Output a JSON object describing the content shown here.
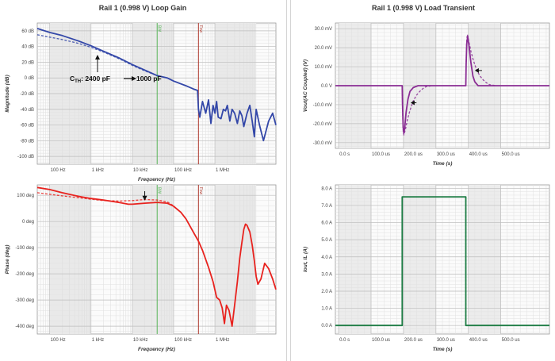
{
  "left_title": "Rail 1 (0.998 V) Loop Gain",
  "right_title": "Rail 1 (0.998 V) Load Transient",
  "colors": {
    "blue": "#3347a8",
    "red": "#e8221e",
    "purple": "#8a2d94",
    "green": "#1e7d45",
    "marker_green": "#5ab55a",
    "marker_red": "#b03a2e"
  },
  "chart_data": [
    {
      "type": "line",
      "name": "loop-gain-magnitude",
      "xlabel": "Frequency (Hz)",
      "ylabel": "Magnitude (dB)",
      "xscale": "log",
      "xlim": [
        50,
        30000000
      ],
      "ylim": [
        -110,
        70
      ],
      "xticks": [
        100,
        1000,
        10000,
        100000,
        1000000
      ],
      "xtick_labels": [
        "100 Hz",
        "1 kHz",
        "10 kHz",
        "100 kHz",
        "1 MHz"
      ],
      "yticks": [
        60,
        40,
        20,
        0,
        -20,
        -40,
        -60,
        -80,
        -100
      ],
      "ytick_labels": [
        "60 dB",
        "40 dB",
        "20 dB",
        "0 dB",
        "-20 dB",
        "-40 dB",
        "-60 dB",
        "-80 dB",
        "-100 dB"
      ],
      "markers": [
        {
          "label": "BW",
          "x": 40000
        },
        {
          "label": "Fsw",
          "x": 400000
        }
      ],
      "annotation": {
        "text_prefix": "C",
        "text_sub": "TH",
        "text_rest": ": 2400 pF",
        "arrow_to": "1000 pF"
      },
      "series": [
        {
          "style": "solid",
          "x": [
            50,
            100,
            200,
            500,
            1000,
            2000,
            5000,
            10000,
            20000,
            40000,
            70000,
            100000,
            200000,
            300000,
            380000,
            400000,
            430000,
            500000,
            600000,
            700000,
            800000,
            900000,
            1000000,
            1100000,
            1200000,
            1400000,
            1600000,
            1800000,
            2000000,
            2300000,
            2600000,
            3000000,
            3500000,
            4000000,
            4500000,
            5000000,
            6000000,
            7000000,
            8000000,
            9000000,
            10000000,
            12000000,
            15000000,
            20000000,
            25000000,
            30000000
          ],
          "y": [
            63,
            58,
            54,
            47,
            41,
            34,
            25,
            17,
            10,
            3,
            0,
            -4,
            -10,
            -14,
            -16,
            -40,
            -50,
            -30,
            -45,
            -28,
            -58,
            -35,
            -45,
            -30,
            -50,
            -52,
            -40,
            -42,
            -35,
            -55,
            -40,
            -45,
            -58,
            -42,
            -48,
            -62,
            -45,
            -35,
            -55,
            -75,
            -40,
            -60,
            -80,
            -55,
            -45,
            -60
          ]
        },
        {
          "style": "dashed",
          "x": [
            50,
            100,
            200,
            500,
            1000,
            2000,
            5000,
            10000,
            20000,
            40000,
            70000,
            100000
          ],
          "y": [
            55,
            52,
            49,
            44,
            39,
            33,
            24,
            16,
            9,
            3,
            0,
            -4
          ]
        }
      ]
    },
    {
      "type": "line",
      "name": "loop-gain-phase",
      "xlabel": "Frequency (Hz)",
      "ylabel": "Phase (deg)",
      "xscale": "log",
      "xlim": [
        50,
        30000000
      ],
      "ylim": [
        -430,
        140
      ],
      "xticks": [
        100,
        1000,
        10000,
        100000,
        1000000
      ],
      "xtick_labels": [
        "100 Hz",
        "1 kHz",
        "10 kHz",
        "100 kHz",
        "1 MHz"
      ],
      "yticks": [
        100,
        0,
        -100,
        -200,
        -300,
        -400
      ],
      "ytick_labels": [
        "100 deg",
        "0 deg",
        "-100 deg",
        "-200 deg",
        "-300 deg",
        "-400 deg"
      ],
      "markers": [
        {
          "label": "BW",
          "x": 40000
        },
        {
          "label": "Fsw",
          "x": 400000
        }
      ],
      "series": [
        {
          "style": "solid",
          "x": [
            50,
            100,
            200,
            500,
            1000,
            2000,
            5000,
            8000,
            10000,
            20000,
            40000,
            70000,
            100000,
            150000,
            200000,
            300000,
            400000,
            500000,
            700000,
            900000,
            1100000,
            1300000,
            1500000,
            1700000,
            1900000,
            2200000,
            2600000,
            3000000,
            3500000,
            4000000,
            4500000,
            5000000,
            5500000,
            6000000,
            7000000,
            8000000,
            9000000,
            10000000,
            11000000,
            13000000,
            16000000,
            20000000,
            25000000,
            30000000
          ],
          "y": [
            130,
            122,
            110,
            96,
            88,
            82,
            72,
            66,
            66,
            70,
            73,
            70,
            58,
            35,
            10,
            -40,
            -75,
            -110,
            -175,
            -230,
            -290,
            -300,
            -330,
            -390,
            -320,
            -340,
            -400,
            -320,
            -230,
            -140,
            -80,
            -30,
            -10,
            -15,
            -40,
            -90,
            -150,
            -210,
            -240,
            -220,
            -160,
            -180,
            -220,
            -260
          ]
        },
        {
          "style": "dashed",
          "x": [
            50,
            100,
            200,
            500,
            1000,
            2000,
            5000,
            10000,
            20000,
            40000,
            70000,
            100000
          ],
          "y": [
            110,
            104,
            98,
            91,
            85,
            80,
            78,
            80,
            84,
            82,
            75,
            60
          ]
        }
      ]
    },
    {
      "type": "line",
      "name": "load-transient-vout",
      "xlabel": "Time (s)",
      "ylabel": "Vout(AC Coupled) (V)",
      "xlim": [
        -10,
        650
      ],
      "ylim": [
        -33,
        33
      ],
      "xticks": [
        0,
        100,
        200,
        300,
        400,
        500
      ],
      "xtick_labels": [
        "0.0 s",
        "100.0 us",
        "200.0 us",
        "300.0 us",
        "400.0 us",
        "500.0 us"
      ],
      "yticks": [
        30,
        20,
        10,
        0,
        -10,
        -20,
        -30
      ],
      "ytick_labels": [
        "30.0 mV",
        "20.0 mV",
        "10.0 mV",
        "0.0 V",
        "-10.0 mV",
        "-20.0 mV",
        "-30.0 mV"
      ],
      "series": [
        {
          "style": "solid",
          "x": [
            -10,
            196,
            197,
            199,
            201,
            204,
            208,
            214,
            220,
            230,
            245,
            260,
            300,
            392,
            393,
            395,
            398,
            402,
            408,
            414,
            420,
            430,
            445,
            460,
            650
          ],
          "y": [
            0,
            0,
            -10,
            -22,
            -25,
            -22,
            -14,
            -7,
            -3,
            -1,
            0,
            0,
            0,
            0,
            11,
            22,
            26,
            21,
            12,
            5,
            2,
            0,
            0,
            0,
            0
          ]
        },
        {
          "style": "dashed",
          "x": [
            196,
            197,
            199,
            201,
            206,
            212,
            220,
            230,
            240,
            250,
            260,
            270,
            290
          ],
          "y": [
            0,
            -12,
            -24,
            -26,
            -23,
            -18,
            -13,
            -8,
            -5,
            -3,
            -1.5,
            -0.5,
            0
          ]
        },
        {
          "style": "dashed",
          "x": [
            392,
            393,
            395,
            397,
            402,
            408,
            416,
            426,
            436,
            446,
            456,
            466,
            486
          ],
          "y": [
            0,
            12,
            24,
            27,
            23,
            18,
            13,
            8,
            5,
            3,
            1.5,
            0.5,
            0
          ]
        }
      ]
    },
    {
      "type": "line",
      "name": "load-transient-current",
      "xlabel": "Time (s)",
      "ylabel": "Iout, IL (A)",
      "xlim": [
        -10,
        650
      ],
      "ylim": [
        -0.5,
        8.2
      ],
      "xticks": [
        0,
        100,
        200,
        300,
        400,
        500
      ],
      "xtick_labels": [
        "0.0 s",
        "100.0 us",
        "200.0 us",
        "300.0 us",
        "400.0 us",
        "500.0 us"
      ],
      "yticks": [
        8,
        7,
        6,
        5,
        4,
        3,
        2,
        1,
        0
      ],
      "ytick_labels": [
        "8.0 A",
        "7.0 A",
        "6.0 A",
        "5.0 A",
        "4.0 A",
        "3.0 A",
        "2.0 A",
        "1.0 A",
        "0.0 A"
      ],
      "series": [
        {
          "style": "solid",
          "x": [
            -10,
            196,
            196,
            392,
            392,
            650
          ],
          "y": [
            0,
            0,
            7.5,
            7.5,
            0,
            0
          ]
        },
        {
          "style": "dashed",
          "x": [
            -10,
            196,
            196,
            392,
            392,
            650
          ],
          "y": [
            0,
            0,
            7.5,
            7.5,
            0,
            0
          ]
        }
      ]
    }
  ]
}
